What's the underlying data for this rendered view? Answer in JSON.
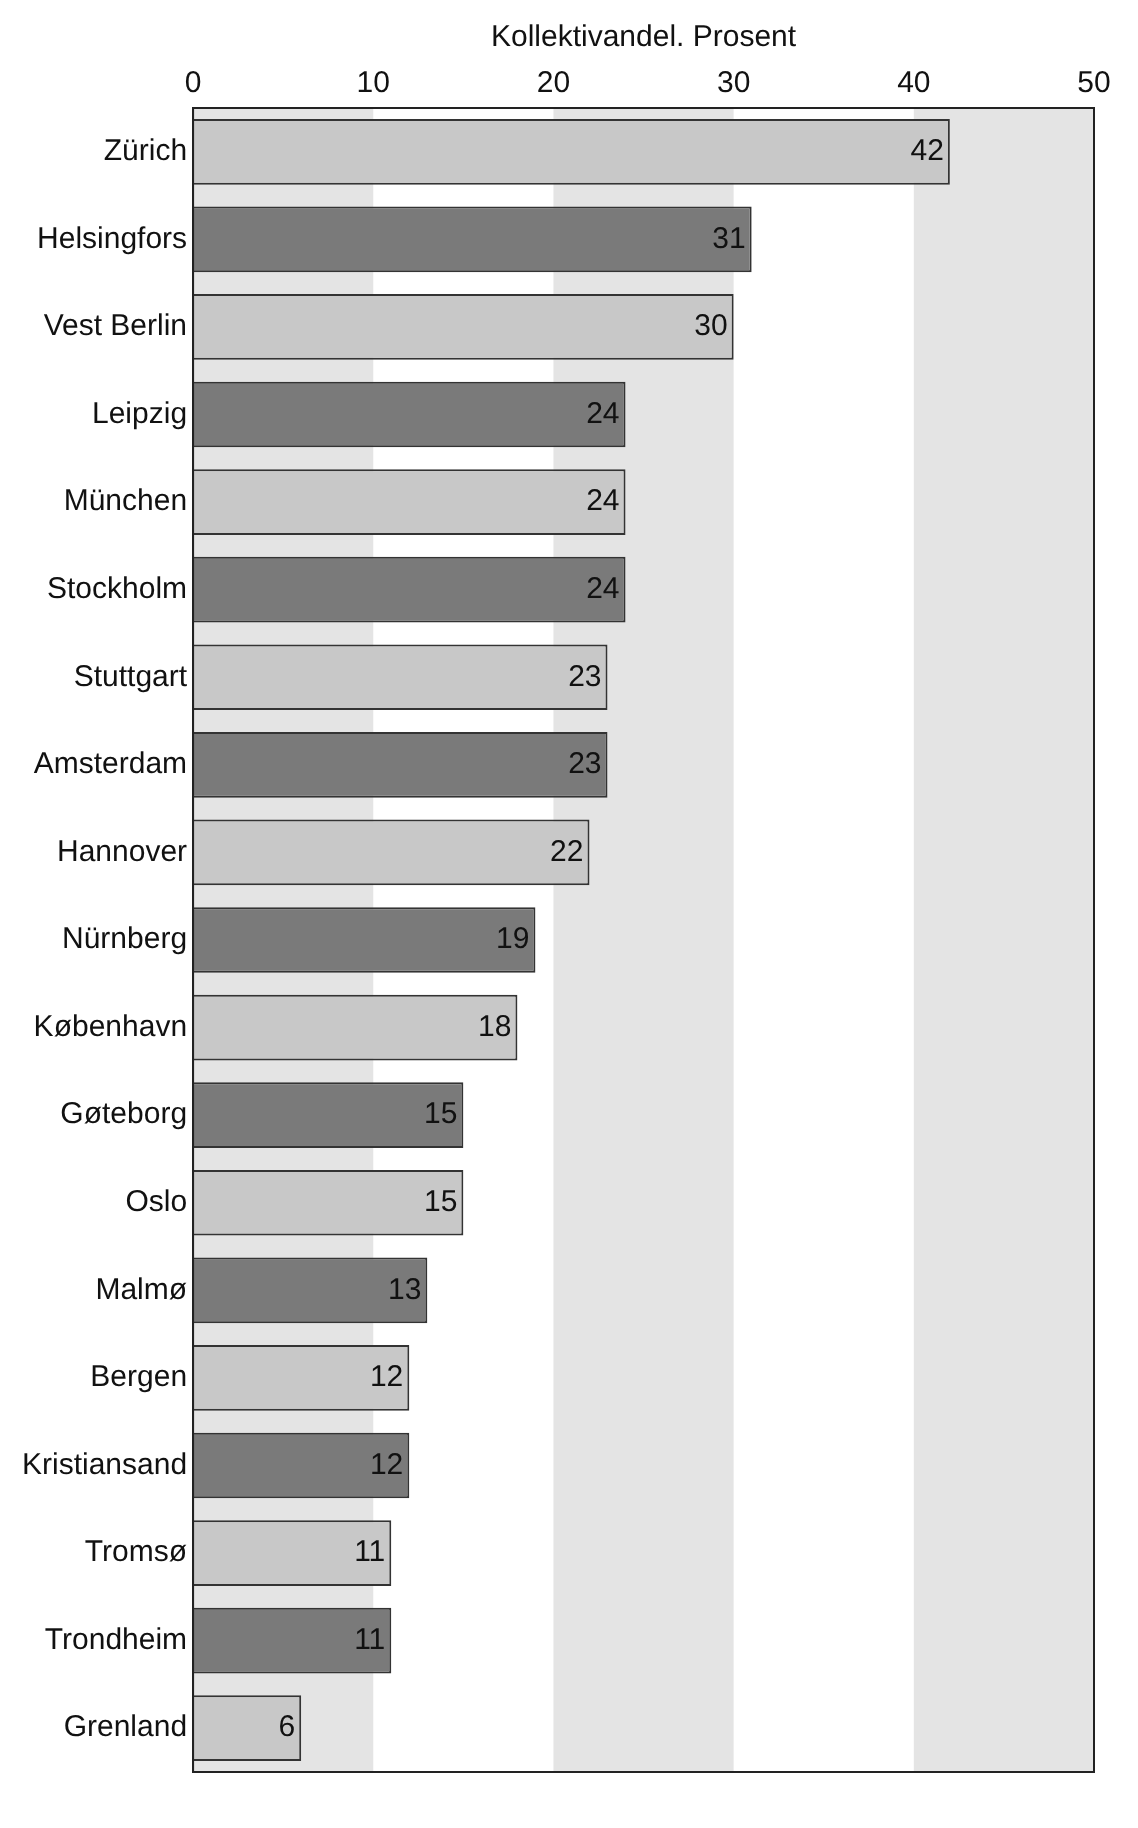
{
  "chart_data": {
    "type": "bar",
    "orientation": "horizontal",
    "xlabel": "Kollektivandel. Prosent",
    "categories": [
      "Zürich",
      "Helsingfors",
      "Vest Berlin",
      "Leipzig",
      "München",
      "Stockholm",
      "Stuttgart",
      "Amsterdam",
      "Hannover",
      "Nürnberg",
      "København",
      "Gøteborg",
      "Oslo",
      "Malmø",
      "Bergen",
      "Kristiansand",
      "Tromsø",
      "Trondheim",
      "Grenland"
    ],
    "values": [
      42,
      31,
      30,
      24,
      24,
      24,
      23,
      23,
      22,
      19,
      18,
      15,
      15,
      13,
      12,
      12,
      11,
      11,
      6
    ],
    "colors": [
      "#c8c8c8",
      "#7a7a7a",
      "#c8c8c8",
      "#7a7a7a",
      "#c8c8c8",
      "#7a7a7a",
      "#c8c8c8",
      "#7a7a7a",
      "#c8c8c8",
      "#7a7a7a",
      "#c8c8c8",
      "#7a7a7a",
      "#c8c8c8",
      "#7a7a7a",
      "#c8c8c8",
      "#7a7a7a",
      "#c8c8c8",
      "#7a7a7a",
      "#c8c8c8"
    ],
    "xlim": [
      0,
      50
    ],
    "xticks": [
      0,
      10,
      20,
      30,
      40,
      50
    ],
    "bands": [
      {
        "axis": "x",
        "from": 0,
        "to": 10,
        "color": "#e4e4e4"
      },
      {
        "axis": "x",
        "from": 20,
        "to": 30,
        "color": "#e4e4e4"
      },
      {
        "axis": "x",
        "from": 40,
        "to": 50,
        "color": "#e4e4e4"
      }
    ],
    "data_labels": true,
    "grid": false,
    "legend": false
  }
}
